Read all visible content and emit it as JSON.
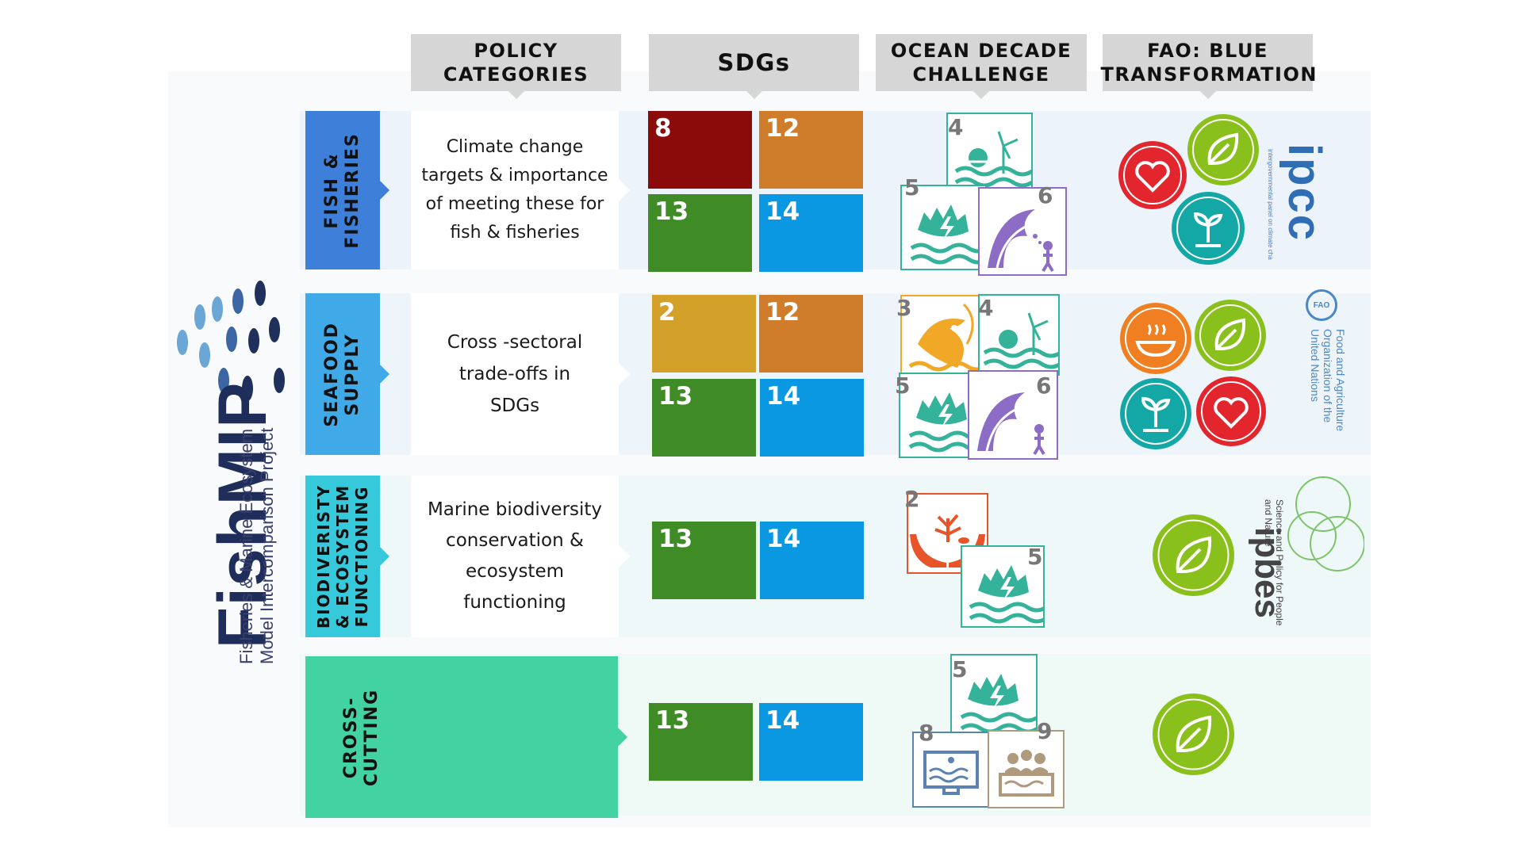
{
  "logo": {
    "name": "FishMIP",
    "subtitle_line1": "Fisheries & Marine Ecosystem",
    "subtitle_line2": "Model Intercomparison Project"
  },
  "headers": {
    "policy": "POLICY CATEGORIES",
    "sdgs": "SDGs",
    "ocean_decade": "OCEAN DECADE CHALLENGE",
    "fao": "FAO: BLUE TRANSFORMATION"
  },
  "rows": [
    {
      "category": "FISH & FISHERIES",
      "category_lines": [
        "FISH &",
        "FISHERIES"
      ],
      "color": "#3e7fd9",
      "description": "Climate change targets & importance of meeting these for fish & fisheries",
      "sdgs": [
        "8",
        "12",
        "13",
        "14"
      ],
      "ocean_decade": [
        "4",
        "5",
        "6"
      ],
      "fao": [
        "heart-icon",
        "leaf-icon",
        "sprout-icon"
      ],
      "organization": "ipcc",
      "organization_text": "intergovernmental panel on climate change"
    },
    {
      "category": "SEAFOOD SUPPLY",
      "category_lines": [
        "SEAFOOD",
        "SUPPLY"
      ],
      "color": "#40a9e8",
      "description": "Cross -sectoral trade-offs in SDGs",
      "sdgs": [
        "2",
        "12",
        "13",
        "14"
      ],
      "ocean_decade": [
        "3",
        "4",
        "5",
        "6"
      ],
      "fao": [
        "bowl-icon",
        "leaf-icon",
        "sprout-icon",
        "heart-icon"
      ],
      "organization": "FAO",
      "organization_text": "Food and Agriculture Organization of the United Nations"
    },
    {
      "category": "BIODIVERISTY & ECOSYSTEM FUNCTIONING",
      "category_lines": [
        "BIODIVERISTY",
        "& ECOSYSTEM",
        "FUNCTIONING"
      ],
      "color": "#36c9dc",
      "description": "Marine biodiversity conservation & ecosystem functioning",
      "sdgs": [
        "13",
        "14"
      ],
      "ocean_decade": [
        "2",
        "5"
      ],
      "fao": [
        "leaf-icon"
      ],
      "organization": "ipbes",
      "organization_text": "Science and Policy for People and Nature"
    },
    {
      "category": "CROSS-CUTTING",
      "category_lines": [
        "CROSS-",
        "CUTTING"
      ],
      "color": "#43d3a2",
      "description": "",
      "sdgs": [
        "13",
        "14"
      ],
      "ocean_decade": [
        "5",
        "8",
        "9"
      ],
      "fao": [
        "leaf-icon"
      ],
      "organization": "",
      "organization_text": ""
    }
  ],
  "colors": {
    "sdg_2": "#d3a02a",
    "sdg_8": "#8b0a0a",
    "sdg_12": "#cf7d2b",
    "sdg_13": "#3f8c26",
    "sdg_14": "#0a98e2",
    "fao_heart": "#e3262d",
    "fao_leaf": "#8ac01b",
    "fao_sprout": "#13a7a6",
    "fao_bowl": "#f07f22"
  }
}
